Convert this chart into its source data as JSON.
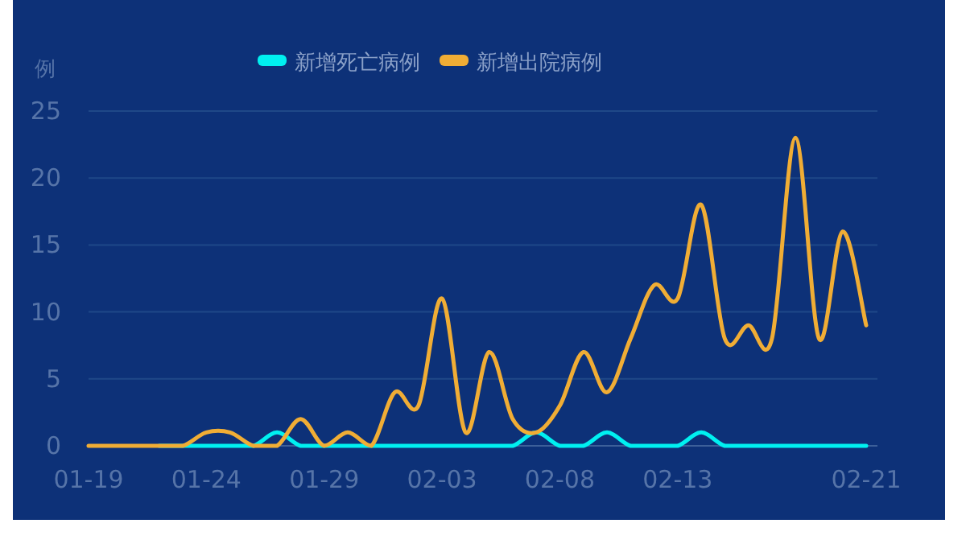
{
  "chart_data": {
    "type": "line",
    "ylabel": "例",
    "categories": [
      "01-19",
      null,
      null,
      null,
      null,
      "01-24",
      null,
      null,
      null,
      null,
      "01-29",
      null,
      null,
      null,
      null,
      "02-03",
      null,
      null,
      null,
      null,
      "02-08",
      null,
      null,
      null,
      null,
      "02-13",
      null,
      null,
      null,
      null,
      null,
      null,
      null,
      "02-21"
    ],
    "series": [
      {
        "name": "新增死亡病例",
        "color": "#00f0f0",
        "values": [
          null,
          null,
          null,
          0,
          0,
          0,
          0,
          0,
          1,
          0,
          0,
          0,
          0,
          0,
          0,
          0,
          0,
          0,
          0,
          1,
          0,
          0,
          1,
          0,
          0,
          0,
          1,
          0,
          0,
          0,
          0,
          0,
          0,
          0
        ]
      },
      {
        "name": "新增出院病例",
        "color": "#f0ad35",
        "values": [
          0,
          0,
          0,
          0,
          0,
          1,
          1,
          0,
          0,
          2,
          0,
          1,
          0,
          4,
          3,
          11,
          1,
          7,
          2,
          1,
          3,
          7,
          4,
          8,
          12,
          11,
          18,
          8,
          9,
          8,
          23,
          8,
          16,
          9
        ]
      }
    ],
    "ylim": [
      0,
      25
    ],
    "yticks": [
      0,
      5,
      10,
      15,
      20,
      25
    ],
    "grid": "y",
    "legend": "top",
    "marker": "none"
  }
}
